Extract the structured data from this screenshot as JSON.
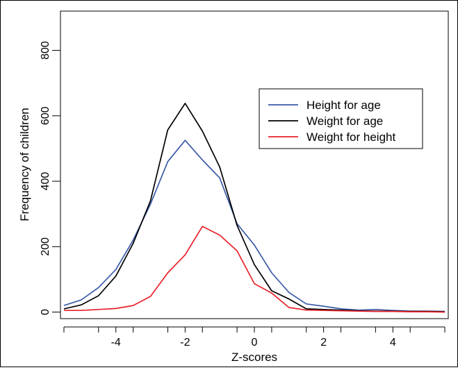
{
  "chart_data": {
    "type": "line",
    "xlabel": "Z-scores",
    "ylabel": "Frequency of children",
    "xlim": [
      -5.6,
      5.6
    ],
    "ylim": [
      -20,
      920
    ],
    "xticks": [
      -4,
      -2,
      0,
      2,
      4
    ],
    "xtick_labels": [
      "-4",
      "-2",
      "0",
      "2",
      "4"
    ],
    "yticks": [
      0,
      200,
      400,
      600,
      800
    ],
    "ytick_labels": [
      "0",
      "200",
      "400",
      "600",
      "800"
    ],
    "grid": false,
    "legend_position": "top-right",
    "x": [
      -5.5,
      -5,
      -4.5,
      -4,
      -3.5,
      -3,
      -2.5,
      -2,
      -1.5,
      -1,
      -0.5,
      0,
      0.5,
      1,
      1.5,
      2,
      2.5,
      3,
      3.5,
      4,
      4.5,
      5,
      5.5
    ],
    "series": [
      {
        "name": "Height for age",
        "color": "#3a5aa8",
        "values": [
          20,
          37,
          75,
          130,
          220,
          330,
          460,
          525,
          465,
          410,
          270,
          205,
          120,
          60,
          25,
          18,
          10,
          6,
          8,
          5,
          3,
          3,
          2
        ]
      },
      {
        "name": "Weight for age",
        "color": "#000000",
        "values": [
          10,
          22,
          50,
          110,
          210,
          340,
          557,
          638,
          553,
          443,
          265,
          145,
          65,
          40,
          10,
          8,
          6,
          4,
          3,
          3,
          2,
          2,
          1
        ]
      },
      {
        "name": "Weight for height",
        "color": "#e8212b",
        "values": [
          5,
          5,
          8,
          11,
          20,
          48,
          120,
          175,
          262,
          235,
          187,
          87,
          58,
          14,
          6,
          5,
          4,
          3,
          2,
          2,
          1,
          1,
          0
        ]
      }
    ]
  }
}
